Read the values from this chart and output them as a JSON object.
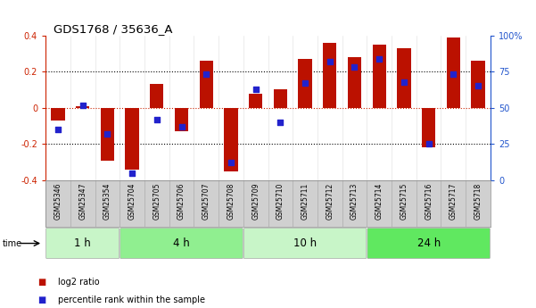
{
  "title": "GDS1768 / 35636_A",
  "samples": [
    "GSM25346",
    "GSM25347",
    "GSM25354",
    "GSM25704",
    "GSM25705",
    "GSM25706",
    "GSM25707",
    "GSM25708",
    "GSM25709",
    "GSM25710",
    "GSM25711",
    "GSM25712",
    "GSM25713",
    "GSM25714",
    "GSM25715",
    "GSM25716",
    "GSM25717",
    "GSM25718"
  ],
  "log2_ratio": [
    -0.07,
    0.01,
    -0.29,
    -0.34,
    0.13,
    -0.13,
    0.26,
    -0.35,
    0.08,
    0.1,
    0.27,
    0.36,
    0.28,
    0.35,
    0.33,
    -0.22,
    0.39,
    0.26
  ],
  "percentile_rank": [
    35,
    52,
    32,
    5,
    42,
    37,
    73,
    12,
    63,
    40,
    67,
    82,
    78,
    84,
    68,
    25,
    73,
    65
  ],
  "groups": [
    {
      "label": "1 h",
      "start": 0,
      "end": 3,
      "color": "#c8f5c8"
    },
    {
      "label": "4 h",
      "start": 3,
      "end": 8,
      "color": "#90ef90"
    },
    {
      "label": "10 h",
      "start": 8,
      "end": 13,
      "color": "#c8f5c8"
    },
    {
      "label": "24 h",
      "start": 13,
      "end": 18,
      "color": "#60e860"
    }
  ],
  "bar_color": "#bb1100",
  "dot_color": "#2222cc",
  "ylim_left": [
    -0.4,
    0.4
  ],
  "ylim_right": [
    0,
    100
  ],
  "yticks_left": [
    -0.4,
    -0.2,
    0.0,
    0.2,
    0.4
  ],
  "ytick_labels_left": [
    "-0.4",
    "-0.2",
    "0",
    "0.2",
    "0.4"
  ],
  "yticks_right": [
    0,
    25,
    50,
    75,
    100
  ],
  "ytick_labels_right": [
    "0",
    "25",
    "50",
    "75",
    "100%"
  ],
  "background_color": "#ffffff",
  "bar_width": 0.55,
  "dot_size": 18,
  "left_color": "#cc2200",
  "right_color": "#2255cc"
}
